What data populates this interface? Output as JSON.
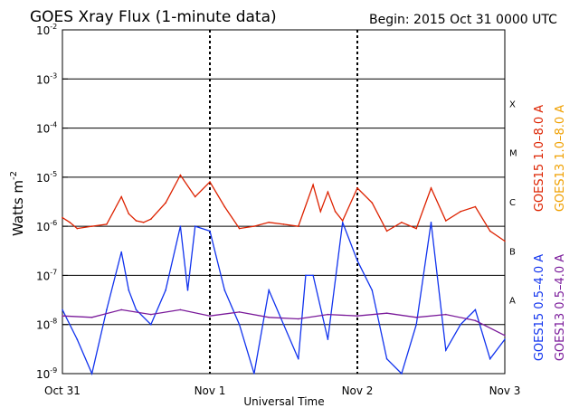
{
  "chart_data": {
    "type": "line",
    "title": "GOES Xray Flux (1-minute data)",
    "begin_text": "Begin:  2015 Oct 31 0000 UTC",
    "xlabel": "Universal Time",
    "ylabel_base": "Watts m",
    "ylabel_exp": "-2",
    "y_scale": "log",
    "ylim": [
      1e-09,
      0.01
    ],
    "y_ticks": [
      {
        "mantissa": "10",
        "exp": "-2"
      },
      {
        "mantissa": "10",
        "exp": "-3"
      },
      {
        "mantissa": "10",
        "exp": "-4"
      },
      {
        "mantissa": "10",
        "exp": "-5"
      },
      {
        "mantissa": "10",
        "exp": "-6"
      },
      {
        "mantissa": "10",
        "exp": "-7"
      },
      {
        "mantissa": "10",
        "exp": "-8"
      },
      {
        "mantissa": "10",
        "exp": "-9"
      }
    ],
    "x_ticks": [
      "Oct 31",
      "Nov 1",
      "Nov 2",
      "Nov 3"
    ],
    "flare_classes": [
      "X",
      "M",
      "C",
      "B",
      "A"
    ],
    "legend": [
      {
        "label": "GOES15 1.0–8.0 A",
        "color": "#dd2200"
      },
      {
        "label": "GOES13 1.0–8.0 A",
        "color": "#f0a000"
      },
      {
        "label": "GOES15 0.5–4.0 A",
        "color": "#1133ee"
      },
      {
        "label": "GOES13 0.5–4.0 A",
        "color": "#7a1a9a"
      }
    ],
    "series": [
      {
        "name": "GOES15 1.0–8.0 A",
        "color": "#dd2200",
        "x": [
          0,
          0.05,
          0.1,
          0.2,
          0.3,
          0.4,
          0.45,
          0.5,
          0.55,
          0.6,
          0.7,
          0.8,
          0.9,
          1.0,
          1.1,
          1.2,
          1.3,
          1.4,
          1.5,
          1.6,
          1.7,
          1.75,
          1.8,
          1.85,
          1.9,
          2.0,
          2.1,
          2.2,
          2.3,
          2.4,
          2.5,
          2.6,
          2.7,
          2.8,
          2.9,
          3.0
        ],
        "y": [
          1.5e-06,
          1.2e-06,
          9e-07,
          1e-06,
          1.1e-06,
          4e-06,
          1.8e-06,
          1.3e-06,
          1.2e-06,
          1.4e-06,
          3e-06,
          1.1e-05,
          4e-06,
          8e-06,
          2.5e-06,
          9e-07,
          1e-06,
          1.2e-06,
          1.1e-06,
          1e-06,
          7e-06,
          2e-06,
          5e-06,
          2e-06,
          1.3e-06,
          6e-06,
          3e-06,
          8e-07,
          1.2e-06,
          9e-07,
          6e-06,
          1.3e-06,
          2e-06,
          2.5e-06,
          8e-07,
          5e-07
        ]
      },
      {
        "name": "GOES15 0.5–4.0 A",
        "color": "#1133ee",
        "x": [
          0,
          0.1,
          0.2,
          0.3,
          0.4,
          0.45,
          0.5,
          0.6,
          0.7,
          0.8,
          0.85,
          0.9,
          1.0,
          1.1,
          1.2,
          1.3,
          1.4,
          1.5,
          1.6,
          1.65,
          1.7,
          1.8,
          1.9,
          2.0,
          2.1,
          2.2,
          2.3,
          2.4,
          2.5,
          2.6,
          2.7,
          2.8,
          2.9,
          3.0
        ],
        "y": [
          2e-08,
          5e-09,
          1e-09,
          2e-08,
          3e-07,
          5e-08,
          2e-08,
          1e-08,
          5e-08,
          1e-06,
          5e-08,
          1e-06,
          8e-07,
          5e-08,
          1e-08,
          1e-09,
          5e-08,
          1e-08,
          2e-09,
          1e-07,
          1e-07,
          5e-09,
          1.2e-06,
          2e-07,
          5e-08,
          2e-09,
          1e-09,
          1e-08,
          1.2e-06,
          3e-09,
          1e-08,
          2e-08,
          2e-09,
          5e-09
        ]
      },
      {
        "name": "GOES13 0.5–4.0 A",
        "color": "#7a1a9a",
        "x": [
          0,
          0.2,
          0.4,
          0.6,
          0.8,
          1.0,
          1.2,
          1.4,
          1.6,
          1.8,
          2.0,
          2.2,
          2.4,
          2.6,
          2.8,
          3.0
        ],
        "y": [
          1.5e-08,
          1.4e-08,
          2e-08,
          1.6e-08,
          2e-08,
          1.5e-08,
          1.8e-08,
          1.4e-08,
          1.3e-08,
          1.6e-08,
          1.5e-08,
          1.7e-08,
          1.4e-08,
          1.6e-08,
          1.2e-08,
          6e-09
        ]
      }
    ]
  }
}
